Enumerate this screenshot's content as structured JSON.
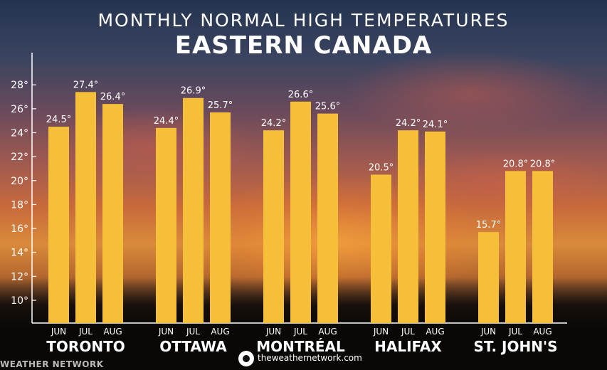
{
  "header": {
    "title_line1": "MONTHLY NORMAL HIGH TEMPERATURES",
    "title_line2": "EASTERN CANADA"
  },
  "footer": {
    "url": "theweathernetwork.com",
    "brand": "WEATHER NETWORK"
  },
  "colors": {
    "bar": "#f6bf3a",
    "text": "#ffffff",
    "axis": "#ffffff"
  },
  "chart_data": {
    "type": "bar",
    "title": "MONTHLY NORMAL HIGH TEMPERATURES",
    "subtitle": "EASTERN CANADA",
    "groups": [
      "TORONTO",
      "OTTAWA",
      "MONTRÉAL",
      "HALIFAX",
      "ST. JOHN'S"
    ],
    "months": [
      "JUN",
      "JUL",
      "AUG"
    ],
    "values": [
      [
        24.5,
        27.4,
        26.4
      ],
      [
        24.4,
        26.9,
        25.7
      ],
      [
        24.2,
        26.6,
        25.6
      ],
      [
        20.5,
        24.2,
        24.1
      ],
      [
        15.7,
        20.8,
        20.8
      ]
    ],
    "value_labels": [
      [
        "24.5°",
        "27.4°",
        "26.4°"
      ],
      [
        "24.4°",
        "26.9°",
        "25.7°"
      ],
      [
        "24.2°",
        "26.6°",
        "25.6°"
      ],
      [
        "20.5°",
        "24.2°",
        "24.1°"
      ],
      [
        "15.7°",
        "20.8°",
        "20.8°"
      ]
    ],
    "y_ticks": [
      10,
      12,
      14,
      16,
      18,
      20,
      22,
      24,
      26,
      28
    ],
    "y_tick_labels": [
      "10°",
      "12°",
      "14°",
      "16°",
      "18°",
      "20°",
      "22°",
      "24°",
      "26°",
      "28°"
    ],
    "ylim": [
      8.1,
      29.5
    ],
    "xlabel": "",
    "ylabel": "",
    "grid": false,
    "legend": "none"
  }
}
